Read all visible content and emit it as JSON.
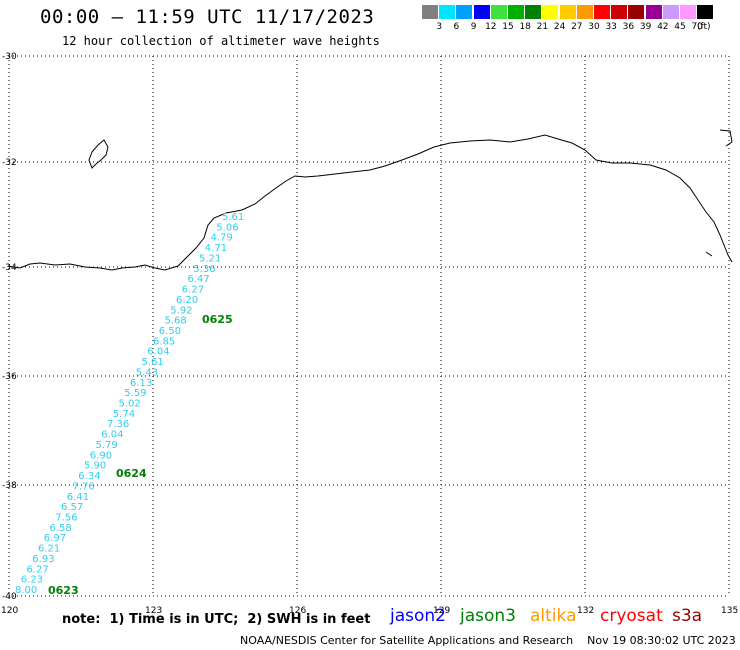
{
  "header": {
    "title": "00:00 – 11:59 UTC 11/17/2023",
    "subtitle": "12 hour collection of altimeter wave heights"
  },
  "legend": {
    "labels": [
      "3",
      "6",
      "9",
      "12",
      "15",
      "18",
      "21",
      "24",
      "27",
      "30",
      "33",
      "36",
      "39",
      "42",
      "45",
      "70"
    ],
    "unit": "(ft)",
    "colors": [
      "#808080",
      "#00e5ff",
      "#00a0ff",
      "#0000ff",
      "#40e040",
      "#00b000",
      "#008000",
      "#ffff00",
      "#ffcc00",
      "#ff9900",
      "#ff0000",
      "#cc0000",
      "#990000",
      "#990099",
      "#cc99ff",
      "#ff99ff",
      "#000000"
    ]
  },
  "map": {
    "lat_labels": [
      "-30",
      "-32",
      "-34",
      "-36",
      "-38",
      "-40"
    ],
    "lon_labels": [
      "120",
      "123",
      "126",
      "129",
      "132",
      "135"
    ],
    "wave_heights": [
      "5.61",
      "5.06",
      "4.79",
      "4.71",
      "5.21",
      "5.36",
      "6.47",
      "6.27",
      "6.20",
      "5.92",
      "5.68",
      "6.50",
      "6.85",
      "6.04",
      "5.61",
      "5.43",
      "6.13",
      "5.59",
      "5.02",
      "5.74",
      "7.36",
      "6.04",
      "5.79",
      "6.90",
      "5.90",
      "6.34",
      "7.76",
      "6.41",
      "6.57",
      "7.56",
      "6.58",
      "6.97",
      "6.21",
      "6.93",
      "6.27",
      "6.23",
      "8.00"
    ],
    "time_labels": [
      "0625",
      "0624",
      "0623"
    ],
    "track_color": "#33ccee",
    "time_color": "#008000"
  },
  "footer": {
    "note": "note:  1) Time is in UTC;  2) SWH is in feet",
    "credit": "NOAA/NESDIS Center for Satellite Applications and Research    Nov 19 08:30:02 UTC 2023",
    "satellites": [
      {
        "name": "jason2",
        "color": "#0000ff"
      },
      {
        "name": "jason3",
        "color": "#008000"
      },
      {
        "name": "altika",
        "color": "#ff9900"
      },
      {
        "name": "cryosat",
        "color": "#ff0000"
      },
      {
        "name": "s3a",
        "color": "#990000"
      }
    ]
  }
}
